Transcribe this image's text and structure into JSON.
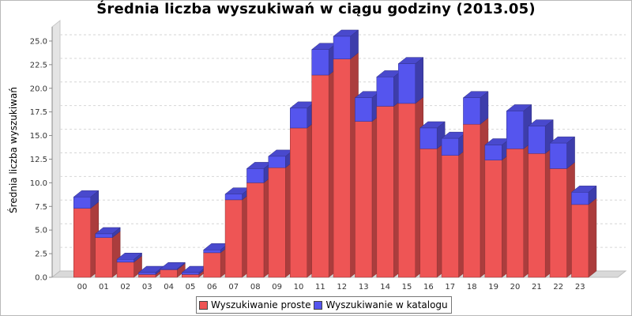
{
  "chart_data": {
    "type": "bar",
    "stacked": true,
    "title": "Średnia liczba wyszukiwań w ciągu godziny (2013.05)",
    "xlabel": "",
    "ylabel": "Średnia liczba wyszukiwań",
    "ylim": [
      0,
      26.5
    ],
    "yticks": [
      "0.0",
      "2.5",
      "5.0",
      "7.5",
      "10.0",
      "12.5",
      "15.0",
      "17.5",
      "20.0",
      "22.5",
      "25.0"
    ],
    "grid": true,
    "legend_position": "bottom",
    "categories": [
      "00",
      "01",
      "02",
      "03",
      "04",
      "05",
      "06",
      "07",
      "08",
      "09",
      "10",
      "11",
      "12",
      "13",
      "14",
      "15",
      "16",
      "17",
      "18",
      "19",
      "20",
      "21",
      "22",
      "23"
    ],
    "series": [
      {
        "name": "Wyszukiwanie proste",
        "color": "#ee5555",
        "values": [
          7.3,
          4.2,
          1.6,
          0.3,
          0.8,
          0.3,
          2.6,
          8.2,
          10.0,
          11.6,
          15.8,
          21.4,
          23.1,
          16.5,
          18.1,
          18.4,
          13.6,
          12.9,
          16.2,
          12.4,
          13.6,
          13.1,
          11.5,
          7.7
        ]
      },
      {
        "name": "Wyszukiwanie w katalogu",
        "color": "#5555ee",
        "values": [
          1.2,
          0.4,
          0.3,
          0.2,
          0.1,
          0.2,
          0.3,
          0.6,
          1.5,
          1.2,
          2.1,
          2.7,
          2.4,
          2.5,
          3.1,
          4.2,
          2.2,
          1.8,
          2.8,
          1.6,
          4.0,
          2.9,
          2.7,
          1.3
        ]
      }
    ]
  }
}
